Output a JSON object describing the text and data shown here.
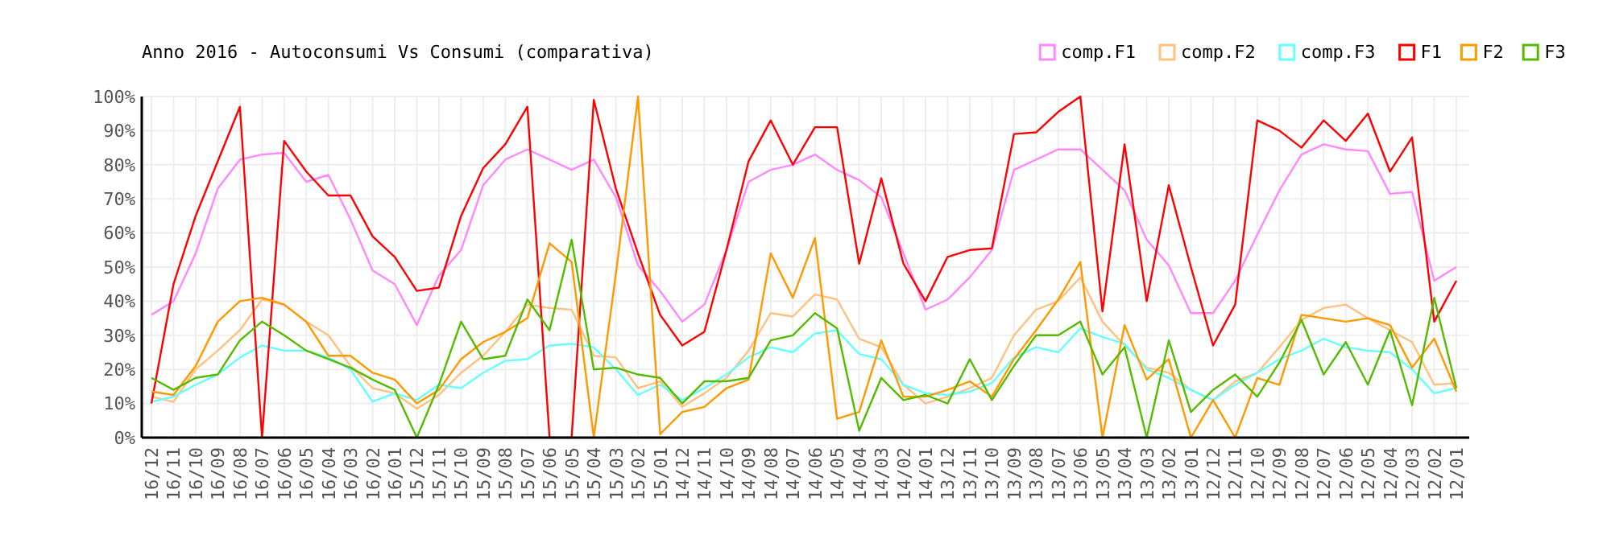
{
  "chart_data": {
    "type": "line",
    "title": "Anno 2016 - Autoconsumi Vs Consumi (comparativa)",
    "categories": [
      "16/12",
      "16/11",
      "16/10",
      "16/09",
      "16/08",
      "16/07",
      "16/06",
      "16/05",
      "16/04",
      "16/03",
      "16/02",
      "16/01",
      "15/12",
      "15/11",
      "15/10",
      "15/09",
      "15/08",
      "15/07",
      "15/06",
      "15/05",
      "15/04",
      "15/03",
      "15/02",
      "15/01",
      "14/12",
      "14/11",
      "14/10",
      "14/09",
      "14/08",
      "14/07",
      "14/06",
      "14/05",
      "14/04",
      "14/03",
      "14/02",
      "14/01",
      "13/12",
      "13/11",
      "13/10",
      "13/09",
      "13/08",
      "13/07",
      "13/06",
      "13/05",
      "13/04",
      "13/03",
      "13/02",
      "13/01",
      "12/12",
      "12/11",
      "12/10",
      "12/09",
      "12/08",
      "12/07",
      "12/06",
      "12/05",
      "12/04",
      "12/03",
      "12/02",
      "12/01"
    ],
    "ylim": [
      0,
      100
    ],
    "yticks": [
      {
        "value": 0,
        "label": "0%"
      },
      {
        "value": 10,
        "label": "10%"
      },
      {
        "value": 20,
        "label": "20%"
      },
      {
        "value": 30,
        "label": "30%"
      },
      {
        "value": 40,
        "label": "40%"
      },
      {
        "value": 50,
        "label": "50%"
      },
      {
        "value": 60,
        "label": "60%"
      },
      {
        "value": 70,
        "label": "70%"
      },
      {
        "value": 80,
        "label": "80%"
      },
      {
        "value": 90,
        "label": "90%"
      },
      {
        "value": 100,
        "label": "100%"
      }
    ],
    "grid": true,
    "legend": "top right",
    "marker": "none",
    "line_style": "solid",
    "series": [
      {
        "name": "comp.F1",
        "color": "#ff88ff",
        "values": [
          36,
          40,
          54,
          73,
          81.5,
          83,
          83.5,
          75,
          77,
          64,
          49,
          45,
          33,
          47.5,
          55,
          74,
          81.5,
          84.5,
          81.5,
          78.5,
          81.5,
          70.5,
          50.5,
          43,
          34,
          39,
          55,
          75,
          78.5,
          80,
          83,
          78.5,
          75.5,
          70.5,
          54,
          37.5,
          40.5,
          47,
          55,
          78.5,
          81.5,
          84.5,
          84.5,
          78.5,
          72.5,
          58,
          50.5,
          36.5,
          36.5,
          46,
          59.5,
          72.5,
          83,
          86,
          84.5,
          84,
          71.5,
          72,
          46,
          50
        ]
      },
      {
        "name": "comp.F2",
        "color": "#ffc080",
        "values": [
          12,
          10.5,
          20,
          25.5,
          31.5,
          40.5,
          39,
          34,
          30,
          21,
          14.5,
          13,
          8.5,
          12.5,
          19,
          24,
          31,
          39,
          38,
          37.5,
          24,
          23.5,
          14.5,
          16.5,
          9,
          13,
          17.5,
          25.5,
          36.5,
          35.5,
          42,
          40.5,
          29,
          26.5,
          15.5,
          10,
          12,
          14.5,
          17.5,
          30,
          37.5,
          40,
          47,
          34,
          27,
          20.5,
          19,
          14,
          11,
          16.5,
          19,
          26.5,
          34.5,
          38,
          39,
          35,
          31.5,
          28,
          15.5,
          16
        ]
      },
      {
        "name": "comp.F3",
        "color": "#66ffff",
        "values": [
          10.5,
          12,
          15.5,
          18.5,
          23.5,
          27,
          25.5,
          25.5,
          23.5,
          20,
          10.5,
          13,
          11,
          15.5,
          14.5,
          19,
          22.5,
          23,
          27,
          27.5,
          26.5,
          20,
          12.5,
          15.5,
          11,
          14.5,
          18.5,
          23.5,
          26.5,
          25,
          30.5,
          31.5,
          24.5,
          23,
          15.5,
          13,
          12.5,
          13.5,
          16,
          23.5,
          26.5,
          25,
          32,
          29.5,
          27.5,
          20,
          17.5,
          14,
          11,
          15.5,
          19,
          23,
          25.5,
          29,
          26.5,
          25.5,
          25,
          20,
          13,
          14.5
        ]
      },
      {
        "name": "F1",
        "color": "#ff0000",
        "values": [
          10,
          45,
          65,
          81,
          97,
          0,
          87,
          78,
          71,
          71,
          59,
          53,
          43,
          44,
          65,
          79,
          86,
          97,
          0,
          0,
          99,
          73,
          54,
          36,
          27,
          31,
          55,
          81,
          93,
          80,
          91,
          91,
          51,
          76,
          51,
          40,
          53,
          55,
          55.5,
          89,
          89.5,
          95.5,
          100,
          37,
          86,
          40,
          74,
          50,
          27,
          39,
          93,
          90,
          85,
          93,
          87,
          95,
          78,
          88,
          34,
          46
        ]
      },
      {
        "name": "F2",
        "color": "#ff9900",
        "values": [
          13.5,
          12.5,
          21,
          34,
          40,
          41,
          39,
          34,
          24,
          24,
          19,
          17,
          10,
          14,
          23,
          28,
          31,
          35,
          57,
          51.5,
          0,
          48,
          100,
          1,
          7.5,
          9,
          14.5,
          17,
          54,
          41,
          58.5,
          5.5,
          7.5,
          28.5,
          12,
          12,
          14,
          16.5,
          12,
          23,
          31.5,
          40.5,
          51.5,
          0,
          33,
          17,
          23,
          0,
          11,
          0,
          17.5,
          15.5,
          36,
          35,
          34,
          35,
          33,
          20.5,
          29,
          13.5
        ]
      },
      {
        "name": "F3",
        "color": "#55bb00",
        "values": [
          17.5,
          14,
          17.5,
          18.5,
          28.5,
          34,
          30,
          25.5,
          23,
          20.5,
          17,
          14,
          0,
          15.5,
          34,
          23,
          24,
          40.5,
          31.5,
          58,
          20,
          20.5,
          18.5,
          17.5,
          10,
          16.5,
          16.5,
          17.5,
          28.5,
          30,
          36.5,
          32,
          2,
          17.5,
          11,
          12.5,
          10,
          23,
          11,
          21,
          30,
          30,
          34,
          18.5,
          26.5,
          0,
          28.5,
          7.5,
          14,
          18.5,
          12,
          22,
          34.5,
          18.5,
          28,
          15.5,
          31.5,
          9.5,
          41,
          14.5
        ]
      }
    ]
  }
}
